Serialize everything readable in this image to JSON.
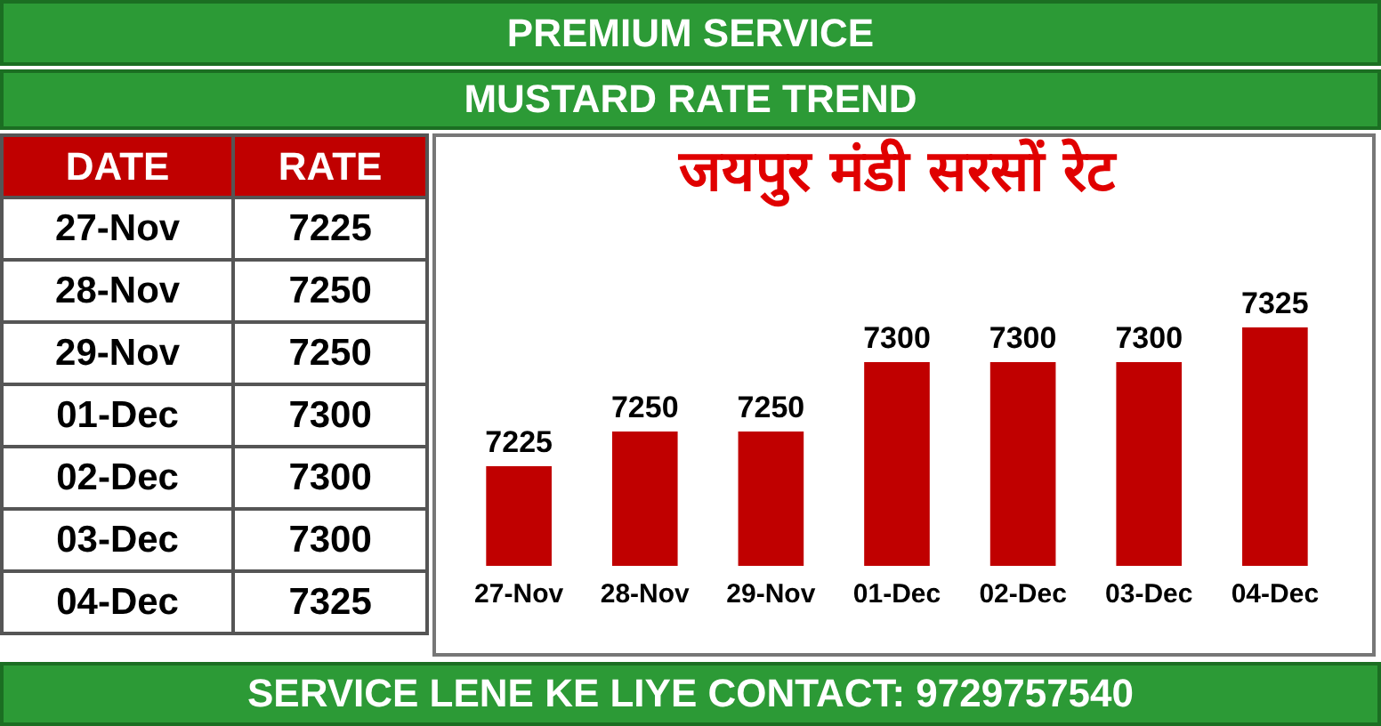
{
  "chart_data": [
    {
      "type": "other",
      "annotations": [
        "PREMIUM SERVICE",
        "MUSTARD RATE TREND",
        "DATE",
        "RATE",
        "27-Nov",
        "7225",
        "28-Nov",
        "7250",
        "29-Nov",
        "7250",
        "01-Dec",
        "7300",
        "02-Dec",
        "7300",
        "03-Dec",
        "7300",
        "04-Dec",
        "7325",
        "SERVICE LENE KE LIYE CONTACT: 9729757540"
      ]
    },
    {
      "type": "bar",
      "title": "जयपुर मंडी सरसों रेट",
      "categories": [
        "27-Nov",
        "28-Nov",
        "29-Nov",
        "01-Dec",
        "02-Dec",
        "03-Dec",
        "04-Dec"
      ],
      "values": [
        7225,
        7250,
        7250,
        7300,
        7300,
        7300,
        7325
      ],
      "color": "#c00000",
      "tick_labels": "x",
      "data_labels": true
    }
  ]
}
